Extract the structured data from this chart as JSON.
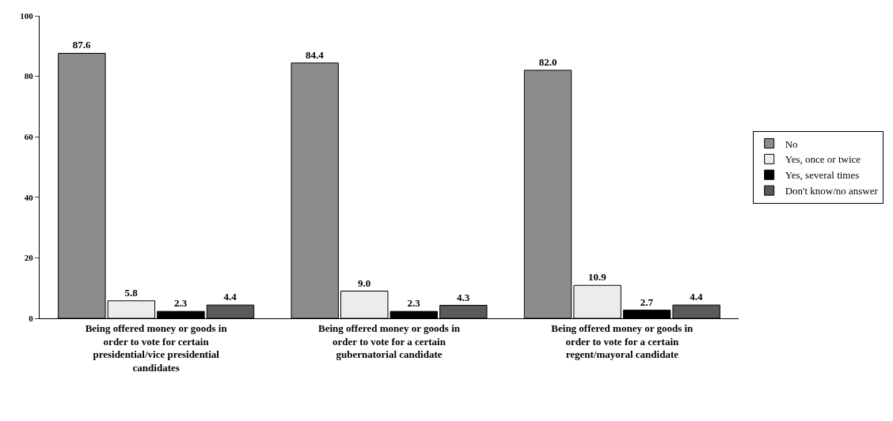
{
  "chart_data": {
    "type": "bar",
    "categories": [
      "Being offered money or goods in order to vote for certain presidential/vice presidential candidates",
      "Being offered money or goods in order to vote for a certain gubernatorial candidate",
      "Being offered money or goods in order to vote for a certain regent/mayoral candidate"
    ],
    "series": [
      {
        "name": "No",
        "color": "#8c8c8c",
        "values": [
          87.6,
          84.4,
          82.0
        ],
        "value_labels": [
          "87.6",
          "84.4",
          "82.0"
        ]
      },
      {
        "name": "Yes, once or twice",
        "color": "#ececec",
        "values": [
          5.8,
          9.0,
          10.9
        ],
        "value_labels": [
          "5.8",
          "9.0",
          "10.9"
        ]
      },
      {
        "name": "Yes, several times",
        "color": "#000000",
        "values": [
          2.3,
          2.3,
          2.7
        ],
        "value_labels": [
          "2.3",
          "2.3",
          "2.7"
        ]
      },
      {
        "name": "Don't know/no answer",
        "color": "#5a5a5a",
        "values": [
          4.4,
          4.3,
          4.4
        ],
        "value_labels": [
          "4.4",
          "4.3",
          "4.4"
        ]
      }
    ],
    "ylim": [
      0,
      100
    ],
    "yticks": [
      0,
      20,
      40,
      60,
      80,
      100
    ],
    "legend": "right"
  }
}
